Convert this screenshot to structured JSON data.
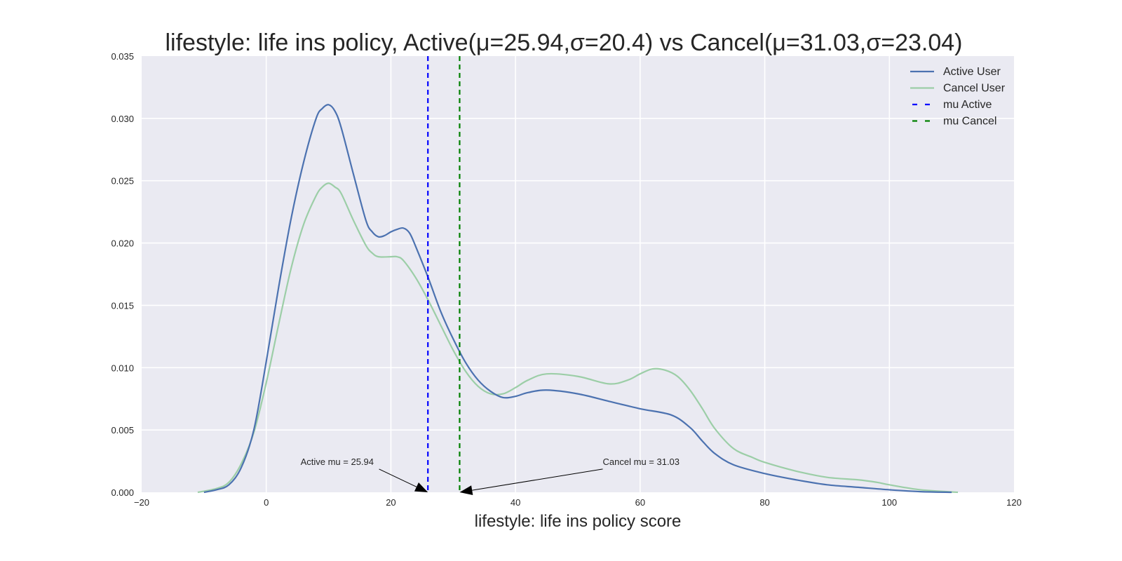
{
  "chart_data": {
    "type": "line",
    "title": "lifestyle: life ins policy, Active(μ=25.94,σ=20.4) vs Cancel(μ=31.03,σ=23.04)",
    "xlabel": "lifestyle: life ins policy score",
    "ylabel": "",
    "xlim": [
      -20,
      120
    ],
    "ylim": [
      0,
      0.035
    ],
    "x_ticks": [
      -20,
      0,
      20,
      40,
      60,
      80,
      100,
      120
    ],
    "x_tick_labels": [
      "−20",
      "0",
      "20",
      "40",
      "60",
      "80",
      "100",
      "120"
    ],
    "y_ticks": [
      0,
      0.005,
      0.01,
      0.015,
      0.02,
      0.025,
      0.03,
      0.035
    ],
    "y_tick_labels": [
      "0.000",
      "0.005",
      "0.010",
      "0.015",
      "0.020",
      "0.025",
      "0.030",
      "0.035"
    ],
    "grid": true,
    "legend_position": "top-right",
    "series": [
      {
        "name": "Active User",
        "color": "#4c72b0",
        "style": "solid",
        "points": [
          [
            -10,
            0.0
          ],
          [
            -8,
            0.0002
          ],
          [
            -6,
            0.0006
          ],
          [
            -4,
            0.002
          ],
          [
            -2,
            0.005
          ],
          [
            0,
            0.0105
          ],
          [
            2,
            0.0165
          ],
          [
            4,
            0.022
          ],
          [
            6,
            0.0265
          ],
          [
            8,
            0.03
          ],
          [
            9,
            0.0308
          ],
          [
            10,
            0.0311
          ],
          [
            11,
            0.0306
          ],
          [
            12,
            0.0293
          ],
          [
            14,
            0.0255
          ],
          [
            16,
            0.0218
          ],
          [
            17,
            0.0209
          ],
          [
            18,
            0.0205
          ],
          [
            19,
            0.0206
          ],
          [
            20,
            0.0209
          ],
          [
            21,
            0.0211
          ],
          [
            22,
            0.0212
          ],
          [
            23,
            0.0208
          ],
          [
            24,
            0.0197
          ],
          [
            26,
            0.0172
          ],
          [
            28,
            0.0145
          ],
          [
            30,
            0.0123
          ],
          [
            32,
            0.0104
          ],
          [
            34,
            0.009
          ],
          [
            36,
            0.0081
          ],
          [
            38,
            0.0076
          ],
          [
            40,
            0.0077
          ],
          [
            42,
            0.008
          ],
          [
            45,
            0.0082
          ],
          [
            50,
            0.0079
          ],
          [
            55,
            0.0073
          ],
          [
            60,
            0.0067
          ],
          [
            65,
            0.0062
          ],
          [
            68,
            0.0052
          ],
          [
            70,
            0.0041
          ],
          [
            72,
            0.0031
          ],
          [
            75,
            0.0022
          ],
          [
            80,
            0.0015
          ],
          [
            85,
            0.001
          ],
          [
            90,
            0.0006
          ],
          [
            95,
            0.0004
          ],
          [
            100,
            0.0002
          ],
          [
            105,
            5e-05
          ],
          [
            110,
            0.0
          ]
        ]
      },
      {
        "name": "Cancel User",
        "color": "#9ccea7",
        "style": "solid",
        "points": [
          [
            -11,
            0.0
          ],
          [
            -8,
            0.0003
          ],
          [
            -6,
            0.0008
          ],
          [
            -4,
            0.0023
          ],
          [
            -2,
            0.0048
          ],
          [
            0,
            0.0088
          ],
          [
            2,
            0.0135
          ],
          [
            4,
            0.018
          ],
          [
            6,
            0.0215
          ],
          [
            8,
            0.0238
          ],
          [
            9,
            0.0245
          ],
          [
            10,
            0.0248
          ],
          [
            11,
            0.0245
          ],
          [
            12,
            0.024
          ],
          [
            14,
            0.0218
          ],
          [
            16,
            0.0198
          ],
          [
            17,
            0.0192
          ],
          [
            18,
            0.0189
          ],
          [
            20,
            0.0189
          ],
          [
            21,
            0.0189
          ],
          [
            22,
            0.0186
          ],
          [
            24,
            0.0172
          ],
          [
            26,
            0.0154
          ],
          [
            28,
            0.0134
          ],
          [
            30,
            0.0114
          ],
          [
            32,
            0.0097
          ],
          [
            34,
            0.0085
          ],
          [
            36,
            0.0079
          ],
          [
            38,
            0.0079
          ],
          [
            40,
            0.0084
          ],
          [
            42,
            0.009
          ],
          [
            45,
            0.0095
          ],
          [
            50,
            0.0093
          ],
          [
            55,
            0.0087
          ],
          [
            58,
            0.009
          ],
          [
            60,
            0.0095
          ],
          [
            62,
            0.0099
          ],
          [
            64,
            0.0098
          ],
          [
            66,
            0.0093
          ],
          [
            68,
            0.0082
          ],
          [
            70,
            0.0067
          ],
          [
            72,
            0.0051
          ],
          [
            75,
            0.0035
          ],
          [
            78,
            0.0028
          ],
          [
            80,
            0.0024
          ],
          [
            85,
            0.0017
          ],
          [
            90,
            0.0012
          ],
          [
            95,
            0.001
          ],
          [
            98,
            0.0008
          ],
          [
            100,
            0.0006
          ],
          [
            105,
            0.0002
          ],
          [
            111,
            0.0
          ]
        ]
      }
    ],
    "vlines": [
      {
        "name": "mu Active",
        "x": 25.94,
        "color": "#0000ff",
        "style": "dashed"
      },
      {
        "name": "mu Cancel",
        "x": 31.03,
        "color": "#008000",
        "style": "dashed"
      }
    ],
    "annotations": [
      {
        "text": "Active mu = 25.94",
        "point": [
          25.94,
          0
        ],
        "text_anchor_xy": [
          5.5,
          0.0022
        ]
      },
      {
        "text": "Cancel mu = 31.03",
        "point": [
          31.03,
          0
        ],
        "text_anchor_xy": [
          54,
          0.0022
        ]
      }
    ],
    "legend": [
      {
        "label": "Active User",
        "color": "#4c72b0",
        "style": "solid"
      },
      {
        "label": "Cancel User",
        "color": "#9ccea7",
        "style": "solid"
      },
      {
        "label": "mu Active",
        "color": "#0000ff",
        "style": "dashed"
      },
      {
        "label": "mu Cancel",
        "color": "#008000",
        "style": "dashed"
      }
    ],
    "colors": {
      "plot_background": "#eaeaf2",
      "grid": "#ffffff"
    }
  }
}
